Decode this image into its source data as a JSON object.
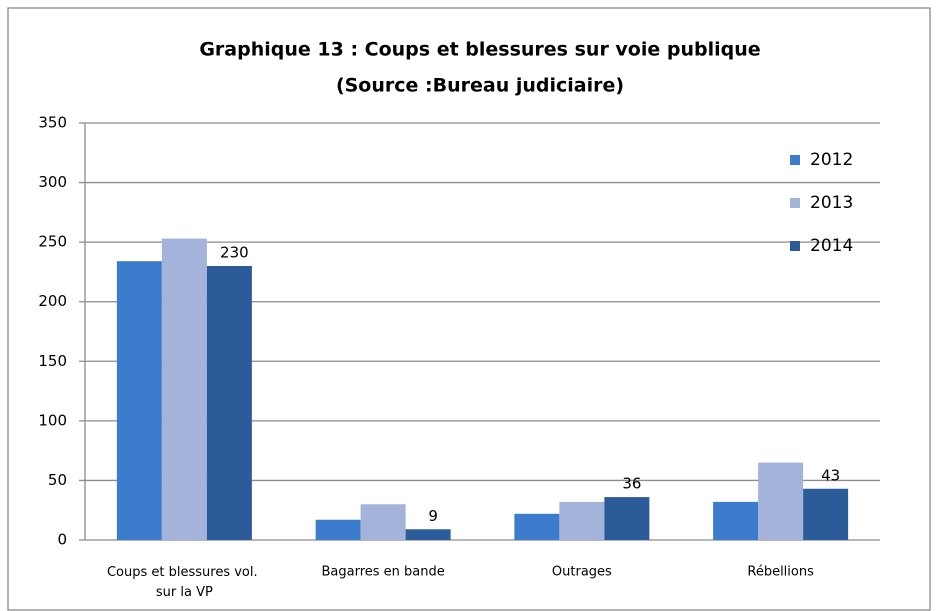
{
  "chart_data": {
    "type": "bar",
    "title": "Graphique 13 : Coups et blessures sur voie publique",
    "subtitle": "(Source :Bureau judiciaire)",
    "categories": [
      "Coups et blessures vol. sur la VP",
      "Bagarres en bande",
      "Outrages",
      "Rébellions"
    ],
    "series": [
      {
        "name": "2012",
        "color": "#3d7ccc",
        "values": [
          234,
          17,
          22,
          32
        ]
      },
      {
        "name": "2013",
        "color": "#a3b3d9",
        "values": [
          253,
          30,
          32,
          65
        ]
      },
      {
        "name": "2014",
        "color": "#2c5b9a",
        "values": [
          230,
          9,
          36,
          43
        ],
        "data_labels": true
      }
    ],
    "ylim": [
      0,
      350
    ],
    "yticks": [
      0,
      50,
      100,
      150,
      200,
      250,
      300,
      350
    ],
    "grid": true,
    "legend": "upper right"
  }
}
